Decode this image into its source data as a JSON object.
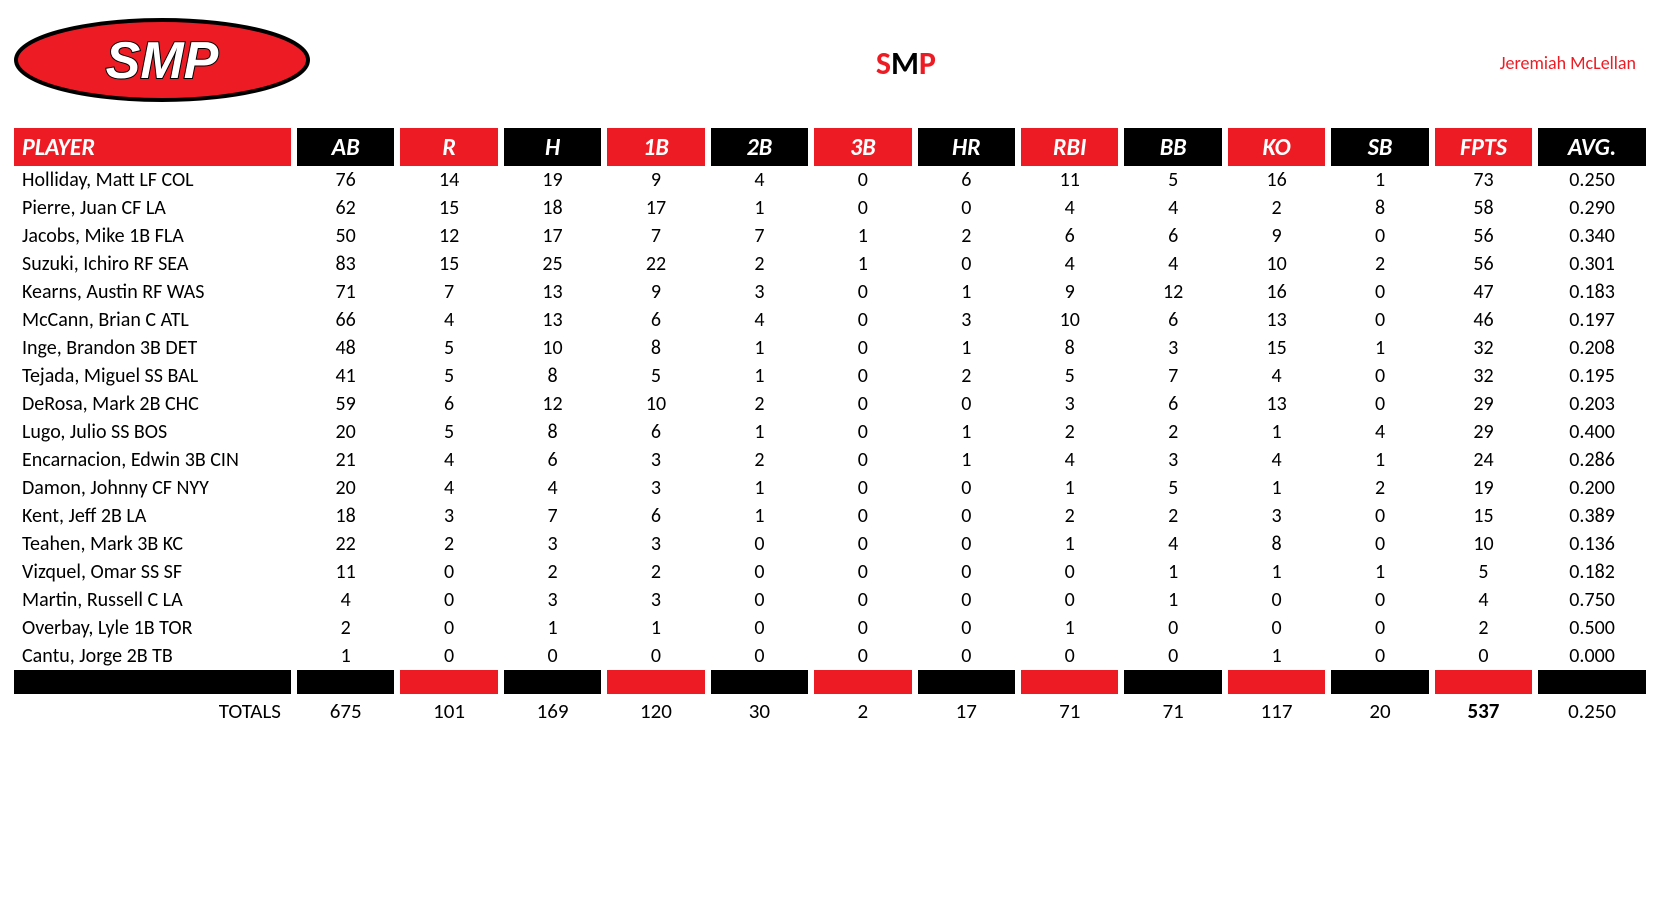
{
  "brand": {
    "logo_text": "SMP",
    "title_s": "S",
    "title_m": "M",
    "title_p": "P",
    "owner": "Jeremiah McLellan"
  },
  "colors": {
    "red": "#ed1c24",
    "black": "#000000",
    "white": "#ffffff"
  },
  "table": {
    "columns": [
      {
        "key": "player",
        "label": "PLAYER",
        "bg": "#ed1c24",
        "player": true
      },
      {
        "key": "ab",
        "label": "AB",
        "bg": "#000000"
      },
      {
        "key": "r",
        "label": "R",
        "bg": "#ed1c24"
      },
      {
        "key": "h",
        "label": "H",
        "bg": "#000000"
      },
      {
        "key": "b1",
        "label": "1B",
        "bg": "#ed1c24"
      },
      {
        "key": "b2",
        "label": "2B",
        "bg": "#000000"
      },
      {
        "key": "b3",
        "label": "3B",
        "bg": "#ed1c24"
      },
      {
        "key": "hr",
        "label": "HR",
        "bg": "#000000"
      },
      {
        "key": "rbi",
        "label": "RBI",
        "bg": "#ed1c24"
      },
      {
        "key": "bb",
        "label": "BB",
        "bg": "#000000"
      },
      {
        "key": "ko",
        "label": "KO",
        "bg": "#ed1c24"
      },
      {
        "key": "sb",
        "label": "SB",
        "bg": "#000000"
      },
      {
        "key": "fpts",
        "label": "FPTS",
        "bg": "#ed1c24"
      },
      {
        "key": "avg",
        "label": "AVG.",
        "bg": "#000000",
        "avg": true
      }
    ],
    "sep_colors": [
      "#000000",
      "#ed1c24",
      "#000000",
      "#ed1c24",
      "#000000",
      "#ed1c24",
      "#000000",
      "#ed1c24",
      "#000000",
      "#ed1c24",
      "#000000",
      "#ed1c24",
      "#000000"
    ],
    "rows": [
      {
        "player": "Holliday, Matt LF COL",
        "ab": "76",
        "r": "14",
        "h": "19",
        "b1": "9",
        "b2": "4",
        "b3": "0",
        "hr": "6",
        "rbi": "11",
        "bb": "5",
        "ko": "16",
        "sb": "1",
        "fpts": "73",
        "avg": "0.250"
      },
      {
        "player": "Pierre, Juan CF LA",
        "ab": "62",
        "r": "15",
        "h": "18",
        "b1": "17",
        "b2": "1",
        "b3": "0",
        "hr": "0",
        "rbi": "4",
        "bb": "4",
        "ko": "2",
        "sb": "8",
        "fpts": "58",
        "avg": "0.290"
      },
      {
        "player": "Jacobs, Mike 1B FLA",
        "ab": "50",
        "r": "12",
        "h": "17",
        "b1": "7",
        "b2": "7",
        "b3": "1",
        "hr": "2",
        "rbi": "6",
        "bb": "6",
        "ko": "9",
        "sb": "0",
        "fpts": "56",
        "avg": "0.340"
      },
      {
        "player": "Suzuki, Ichiro RF SEA",
        "ab": "83",
        "r": "15",
        "h": "25",
        "b1": "22",
        "b2": "2",
        "b3": "1",
        "hr": "0",
        "rbi": "4",
        "bb": "4",
        "ko": "10",
        "sb": "2",
        "fpts": "56",
        "avg": "0.301"
      },
      {
        "player": "Kearns, Austin RF WAS",
        "ab": "71",
        "r": "7",
        "h": "13",
        "b1": "9",
        "b2": "3",
        "b3": "0",
        "hr": "1",
        "rbi": "9",
        "bb": "12",
        "ko": "16",
        "sb": "0",
        "fpts": "47",
        "avg": "0.183"
      },
      {
        "player": "McCann, Brian C ATL",
        "ab": "66",
        "r": "4",
        "h": "13",
        "b1": "6",
        "b2": "4",
        "b3": "0",
        "hr": "3",
        "rbi": "10",
        "bb": "6",
        "ko": "13",
        "sb": "0",
        "fpts": "46",
        "avg": "0.197"
      },
      {
        "player": "Inge, Brandon 3B DET",
        "ab": "48",
        "r": "5",
        "h": "10",
        "b1": "8",
        "b2": "1",
        "b3": "0",
        "hr": "1",
        "rbi": "8",
        "bb": "3",
        "ko": "15",
        "sb": "1",
        "fpts": "32",
        "avg": "0.208"
      },
      {
        "player": "Tejada, Miguel SS BAL",
        "ab": "41",
        "r": "5",
        "h": "8",
        "b1": "5",
        "b2": "1",
        "b3": "0",
        "hr": "2",
        "rbi": "5",
        "bb": "7",
        "ko": "4",
        "sb": "0",
        "fpts": "32",
        "avg": "0.195"
      },
      {
        "player": "DeRosa, Mark 2B CHC",
        "ab": "59",
        "r": "6",
        "h": "12",
        "b1": "10",
        "b2": "2",
        "b3": "0",
        "hr": "0",
        "rbi": "3",
        "bb": "6",
        "ko": "13",
        "sb": "0",
        "fpts": "29",
        "avg": "0.203"
      },
      {
        "player": "Lugo, Julio SS BOS",
        "ab": "20",
        "r": "5",
        "h": "8",
        "b1": "6",
        "b2": "1",
        "b3": "0",
        "hr": "1",
        "rbi": "2",
        "bb": "2",
        "ko": "1",
        "sb": "4",
        "fpts": "29",
        "avg": "0.400"
      },
      {
        "player": "Encarnacion, Edwin 3B CIN",
        "ab": "21",
        "r": "4",
        "h": "6",
        "b1": "3",
        "b2": "2",
        "b3": "0",
        "hr": "1",
        "rbi": "4",
        "bb": "3",
        "ko": "4",
        "sb": "1",
        "fpts": "24",
        "avg": "0.286"
      },
      {
        "player": "Damon, Johnny CF NYY",
        "ab": "20",
        "r": "4",
        "h": "4",
        "b1": "3",
        "b2": "1",
        "b3": "0",
        "hr": "0",
        "rbi": "1",
        "bb": "5",
        "ko": "1",
        "sb": "2",
        "fpts": "19",
        "avg": "0.200"
      },
      {
        "player": "Kent, Jeff 2B LA",
        "ab": "18",
        "r": "3",
        "h": "7",
        "b1": "6",
        "b2": "1",
        "b3": "0",
        "hr": "0",
        "rbi": "2",
        "bb": "2",
        "ko": "3",
        "sb": "0",
        "fpts": "15",
        "avg": "0.389"
      },
      {
        "player": "Teahen, Mark 3B KC",
        "ab": "22",
        "r": "2",
        "h": "3",
        "b1": "3",
        "b2": "0",
        "b3": "0",
        "hr": "0",
        "rbi": "1",
        "bb": "4",
        "ko": "8",
        "sb": "0",
        "fpts": "10",
        "avg": "0.136"
      },
      {
        "player": "Vizquel, Omar SS SF",
        "ab": "11",
        "r": "0",
        "h": "2",
        "b1": "2",
        "b2": "0",
        "b3": "0",
        "hr": "0",
        "rbi": "0",
        "bb": "1",
        "ko": "1",
        "sb": "1",
        "fpts": "5",
        "avg": "0.182"
      },
      {
        "player": "Martin, Russell C LA",
        "ab": "4",
        "r": "0",
        "h": "3",
        "b1": "3",
        "b2": "0",
        "b3": "0",
        "hr": "0",
        "rbi": "0",
        "bb": "1",
        "ko": "0",
        "sb": "0",
        "fpts": "4",
        "avg": "0.750"
      },
      {
        "player": "Overbay, Lyle 1B TOR",
        "ab": "2",
        "r": "0",
        "h": "1",
        "b1": "1",
        "b2": "0",
        "b3": "0",
        "hr": "0",
        "rbi": "1",
        "bb": "0",
        "ko": "0",
        "sb": "0",
        "fpts": "2",
        "avg": "0.500"
      },
      {
        "player": "Cantu, Jorge 2B TB",
        "ab": "1",
        "r": "0",
        "h": "0",
        "b1": "0",
        "b2": "0",
        "b3": "0",
        "hr": "0",
        "rbi": "0",
        "bb": "0",
        "ko": "1",
        "sb": "0",
        "fpts": "0",
        "avg": "0.000"
      }
    ],
    "totals": {
      "label": "TOTALS",
      "ab": "675",
      "r": "101",
      "h": "169",
      "b1": "120",
      "b2": "30",
      "b3": "2",
      "hr": "17",
      "rbi": "71",
      "bb": "71",
      "ko": "117",
      "sb": "20",
      "fpts": "537",
      "avg": "0.250"
    }
  }
}
